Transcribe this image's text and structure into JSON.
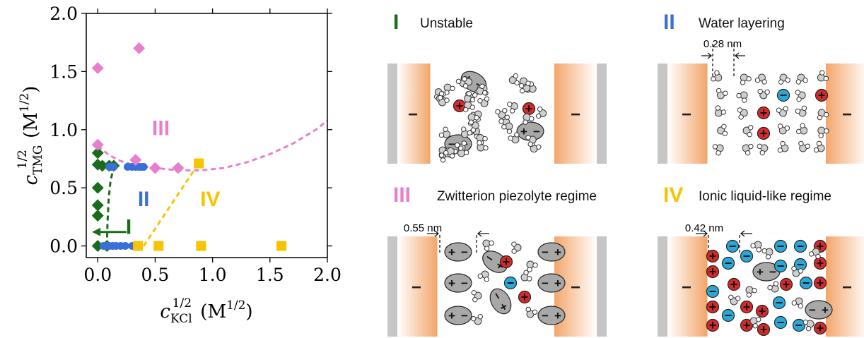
{
  "chart_data": {
    "type": "scatter",
    "xlabel": "c_KCl^{1/2} (M^{1/2})",
    "ylabel": "c_TMG^{1/2} (M^{1/2})",
    "xlim": [
      -0.1,
      2.0
    ],
    "ylim": [
      -0.1,
      2.0
    ],
    "xticks": [
      0.0,
      0.5,
      1.0,
      1.5,
      2.0
    ],
    "yticks": [
      0.0,
      0.5,
      1.0,
      1.5,
      2.0
    ],
    "xtick_labels": [
      "0.0",
      "0.5",
      "1.0",
      "1.5",
      "2.0"
    ],
    "ytick_labels": [
      "0.0",
      "0.5",
      "1.0",
      "1.5",
      "2.0"
    ],
    "grid": false,
    "series": [
      {
        "color": "#1a6b1a",
        "marker": "diamond",
        "points": [
          [
            0,
            0
          ],
          [
            0,
            0.26
          ],
          [
            0,
            0.35
          ],
          [
            0,
            0.5
          ],
          [
            0,
            0.7
          ],
          [
            0,
            0.8
          ],
          [
            0.04,
            0.69
          ],
          [
            0.1,
            0.69
          ],
          [
            0.14,
            0.69
          ],
          [
            0.08,
            0
          ]
        ]
      },
      {
        "color": "#3a6fd8",
        "marker": "circle",
        "points": [
          [
            0.05,
            0
          ],
          [
            0.08,
            0
          ],
          [
            0.1,
            0
          ],
          [
            0.13,
            0
          ],
          [
            0.16,
            0
          ],
          [
            0.2,
            0
          ],
          [
            0.24,
            0
          ],
          [
            0.3,
            0
          ],
          [
            0.1,
            0.68
          ],
          [
            0.12,
            0.68
          ],
          [
            0.14,
            0.68
          ],
          [
            0.26,
            0.68
          ],
          [
            0.3,
            0.68
          ],
          [
            0.33,
            0.68
          ],
          [
            0.36,
            0.68
          ],
          [
            0.38,
            0.68
          ],
          [
            0.4,
            0.68
          ]
        ]
      },
      {
        "color": "#e77fcf",
        "marker": "diamond",
        "points": [
          [
            0,
            1.53
          ],
          [
            0.36,
            1.7
          ],
          [
            0,
            0.87
          ],
          [
            0.33,
            0.74
          ],
          [
            0.5,
            0.67
          ],
          [
            0.7,
            0.67
          ]
        ]
      },
      {
        "color": "#f6c400",
        "marker": "square",
        "points": [
          [
            0.35,
            0
          ],
          [
            0.53,
            0
          ],
          [
            0.9,
            0
          ],
          [
            1.6,
            0
          ],
          [
            0.88,
            0.71
          ]
        ]
      }
    ],
    "boundaries": [
      {
        "name": "I",
        "color": "#1a6b1a",
        "style": "dashed",
        "points": [
          [
            0.08,
            0.0
          ],
          [
            0.085,
            0.2
          ],
          [
            0.095,
            0.4
          ],
          [
            0.11,
            0.55
          ],
          [
            0.13,
            0.64
          ],
          [
            0.16,
            0.68
          ]
        ]
      },
      {
        "name": "III",
        "color": "#e77fcf",
        "style": "dashed",
        "points": [
          [
            0.0,
            0.86
          ],
          [
            0.1,
            0.78
          ],
          [
            0.2,
            0.73
          ],
          [
            0.3,
            0.7
          ],
          [
            0.5,
            0.67
          ],
          [
            0.7,
            0.65
          ],
          [
            0.9,
            0.65
          ],
          [
            1.1,
            0.67
          ],
          [
            1.3,
            0.72
          ],
          [
            1.5,
            0.79
          ],
          [
            1.7,
            0.88
          ],
          [
            1.9,
            1.0
          ],
          [
            2.0,
            1.08
          ]
        ]
      },
      {
        "name": "IV",
        "color": "#f6c400",
        "style": "dashed",
        "points": [
          [
            0.4,
            0.0
          ],
          [
            0.88,
            0.71
          ]
        ]
      }
    ],
    "region_labels": [
      {
        "text": "I",
        "color": "#1a6b1a",
        "x": 0.27,
        "y": 0.15
      },
      {
        "text": "II",
        "color": "#3a6fd8",
        "x": 0.4,
        "y": 0.39
      },
      {
        "text": "III",
        "color": "#e77fcf",
        "x": 0.55,
        "y": 1.0
      },
      {
        "text": "IV",
        "color": "#f6c400",
        "x": 0.98,
        "y": 0.39
      }
    ],
    "arrow": {
      "color": "#1a6b1a",
      "from": [
        0.25,
        0.12
      ],
      "to": [
        -0.05,
        0.12
      ]
    }
  },
  "panels": [
    {
      "id": "I",
      "numeral": "I",
      "title": "Unstable",
      "color": "#1a6b1a",
      "spacing": ""
    },
    {
      "id": "II",
      "numeral": "II",
      "title": "Water layering",
      "color": "#3a6fd8",
      "spacing": "0.28 nm"
    },
    {
      "id": "III",
      "numeral": "III",
      "title": "Zwitterion piezolyte regime",
      "color": "#e77fcf",
      "spacing": "0.55 nm"
    },
    {
      "id": "IV",
      "numeral": "IV",
      "title": "Ionic liquid-like regime",
      "color": "#f6c400",
      "spacing": "0.42 nm"
    }
  ],
  "symbols": {
    "plus": "+",
    "minus": "−"
  }
}
